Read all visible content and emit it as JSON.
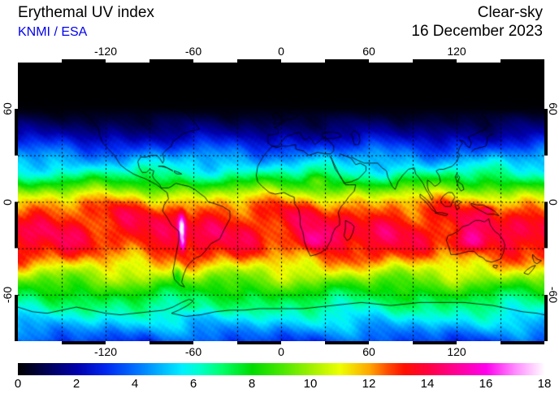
{
  "header": {
    "title": "Erythemal UV index",
    "credit": "KNMI / ESA",
    "credit_color": "#0000EE",
    "condition": "Clear-sky",
    "date": "16 December 2023"
  },
  "axes": {
    "lon_tick_labels": [
      "-120",
      "-60",
      "0",
      "60",
      "120"
    ],
    "lon_tick_values": [
      -120,
      -60,
      0,
      60,
      120
    ],
    "lat_tick_labels": [
      "60",
      "0",
      "-60"
    ],
    "lat_tick_values": [
      60,
      0,
      -60
    ],
    "gridline_spacing_deg": 30,
    "lon_range": [
      -180,
      180
    ],
    "lat_range": [
      -90,
      90
    ]
  },
  "colorbar": {
    "tick_labels": [
      "0",
      "2",
      "4",
      "6",
      "8",
      "10",
      "12",
      "14",
      "16",
      "18"
    ],
    "tick_values": [
      0,
      2,
      4,
      6,
      8,
      10,
      12,
      14,
      16,
      18
    ],
    "min": 0,
    "max": 18,
    "stops": [
      [
        0,
        "#000000"
      ],
      [
        1,
        "#000058"
      ],
      [
        2,
        "#0000AC"
      ],
      [
        3,
        "#0028F0"
      ],
      [
        4,
        "#0070FF"
      ],
      [
        5,
        "#00C0FF"
      ],
      [
        5.6,
        "#00F0FF"
      ],
      [
        6.2,
        "#00FFCC"
      ],
      [
        7,
        "#00FF66"
      ],
      [
        8,
        "#00DC00"
      ],
      [
        9,
        "#48E800"
      ],
      [
        10,
        "#A0F000"
      ],
      [
        11,
        "#EEFF00"
      ],
      [
        12,
        "#FFA800"
      ],
      [
        12.6,
        "#FF5000"
      ],
      [
        13.2,
        "#FF1000"
      ],
      [
        14,
        "#FF0040"
      ],
      [
        15,
        "#FF0098"
      ],
      [
        16,
        "#FF00EE"
      ],
      [
        17,
        "#FF8CFF"
      ],
      [
        18,
        "#FFFFFF"
      ]
    ]
  },
  "map_data": {
    "type": "heatmap",
    "projection": "equirectangular",
    "quantity": "Erythemal UV index (clear-sky)",
    "lon_range": [
      -180,
      180
    ],
    "lat_range": [
      -90,
      90
    ],
    "zonal_profile_lat_uv": [
      [
        -90,
        3.4
      ],
      [
        -85,
        4.1
      ],
      [
        -80,
        4.9
      ],
      [
        -75,
        5.7
      ],
      [
        -70,
        6.4
      ],
      [
        -65,
        7.0
      ],
      [
        -60,
        7.7
      ],
      [
        -55,
        8.6
      ],
      [
        -50,
        9.6
      ],
      [
        -45,
        10.6
      ],
      [
        -40,
        11.6
      ],
      [
        -35,
        12.5
      ],
      [
        -30,
        13.1
      ],
      [
        -25,
        13.5
      ],
      [
        -20,
        13.7
      ],
      [
        -15,
        13.6
      ],
      [
        -10,
        13.3
      ],
      [
        -5,
        12.8
      ],
      [
        0,
        11.9
      ],
      [
        5,
        10.5
      ],
      [
        10,
        8.8
      ],
      [
        15,
        7.3
      ],
      [
        20,
        6.1
      ],
      [
        25,
        5.2
      ],
      [
        30,
        4.3
      ],
      [
        35,
        3.3
      ],
      [
        40,
        2.4
      ],
      [
        45,
        1.6
      ],
      [
        50,
        1.0
      ],
      [
        54,
        0.6
      ],
      [
        58,
        0.25
      ],
      [
        62,
        0.05
      ],
      [
        68,
        0
      ],
      [
        90,
        0
      ]
    ],
    "anomalies": [
      {
        "name": "andes-altiplano-max",
        "lon": -68,
        "lat": -17,
        "slon": 2.5,
        "slat": 9,
        "dv": 4.6
      },
      {
        "name": "andes-south-high",
        "lon": -67,
        "lat": -27,
        "slon": 2,
        "slat": 5,
        "dv": 2.5
      },
      {
        "name": "patagonia-low",
        "lon": -71,
        "lat": -47,
        "slon": 3,
        "slat": 6,
        "dv": -2.0
      },
      {
        "name": "southern-africa-high",
        "lon": 23,
        "lat": -25,
        "slon": 9,
        "slat": 7,
        "dv": 2.0
      },
      {
        "name": "australia-high",
        "lon": 129,
        "lat": -26,
        "slon": 13,
        "slat": 7,
        "dv": 1.8
      },
      {
        "name": "new-guinea-high",
        "lon": 142,
        "lat": -5,
        "slon": 4,
        "slat": 2.5,
        "dv": 1.6
      },
      {
        "name": "northeast-africa-high",
        "lon": 25,
        "lat": 14,
        "slon": 9,
        "slat": 4,
        "dv": 1.2
      },
      {
        "name": "antarctic-peninsula-high",
        "lon": -60,
        "lat": -68,
        "slon": 10,
        "slat": 4,
        "dv": 0.8
      }
    ]
  }
}
